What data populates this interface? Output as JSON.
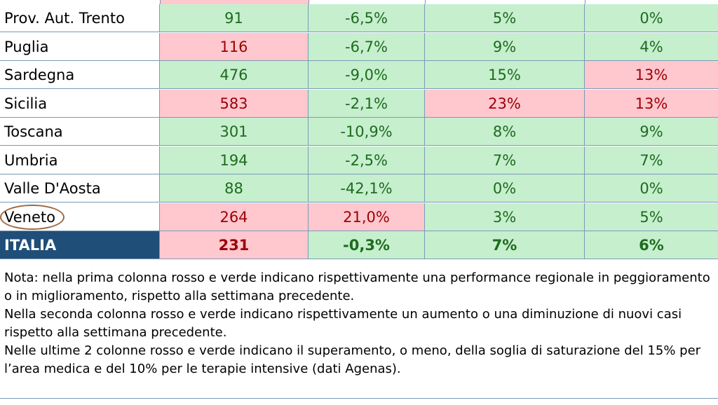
{
  "table": {
    "rows": [
      {
        "name": "Prov. Aut. Trento",
        "c1": "91",
        "c2": "-6,5%",
        "c3": "5%",
        "c4": "0%",
        "s1": "green",
        "s2": "green",
        "s3": "green",
        "s4": "green"
      },
      {
        "name": "Puglia",
        "c1": "116",
        "c2": "-6,7%",
        "c3": "9%",
        "c4": "4%",
        "s1": "red",
        "s2": "green",
        "s3": "green",
        "s4": "green"
      },
      {
        "name": "Sardegna",
        "c1": "476",
        "c2": "-9,0%",
        "c3": "15%",
        "c4": "13%",
        "s1": "green",
        "s2": "green",
        "s3": "green",
        "s4": "red"
      },
      {
        "name": "Sicilia",
        "c1": "583",
        "c2": "-2,1%",
        "c3": "23%",
        "c4": "13%",
        "s1": "red",
        "s2": "green",
        "s3": "red",
        "s4": "red"
      },
      {
        "name": "Toscana",
        "c1": "301",
        "c2": "-10,9%",
        "c3": "8%",
        "c4": "9%",
        "s1": "green",
        "s2": "green",
        "s3": "green",
        "s4": "green"
      },
      {
        "name": "Umbria",
        "c1": "194",
        "c2": "-2,5%",
        "c3": "7%",
        "c4": "7%",
        "s1": "green",
        "s2": "green",
        "s3": "green",
        "s4": "green"
      },
      {
        "name": "Valle D'Aosta",
        "c1": "88",
        "c2": "-42,1%",
        "c3": "0%",
        "c4": "0%",
        "s1": "green",
        "s2": "green",
        "s3": "green",
        "s4": "green"
      },
      {
        "name": "Veneto",
        "c1": "264",
        "c2": "21,0%",
        "c3": "3%",
        "c4": "5%",
        "s1": "red",
        "s2": "red",
        "s3": "green",
        "s4": "green"
      }
    ],
    "total": {
      "name": "ITALIA",
      "c1": "231",
      "c2": "-0,3%",
      "c3": "7%",
      "c4": "6%",
      "s1": "red",
      "s2": "green",
      "s3": "green",
      "s4": "green"
    },
    "top_strip_colors": [
      "#ffffff",
      "#ffc7ce",
      "#ffffff",
      "#ffffff",
      "#ffffff"
    ]
  },
  "notes": [
    "Nota: nella prima colonna rosso e verde indicano rispettivamente una performance regionale in peggioramento",
    "o in miglioramento, rispetto alla settimana precedente.",
    "Nella seconda colonna rosso e verde indicano rispettivamente un aumento o una diminuzione di nuovi casi",
    "rispetto alla settimana precedente.",
    "Nelle ultime 2 colonne rosso e verde indicano il superamento, o meno, della soglia di saturazione del 15% per",
    "l’area medica e del 10% per le terapie intensive (dati Agenas)."
  ],
  "colors": {
    "green_bg": "#c6efce",
    "green_text": "#1e6b1e",
    "red_bg": "#ffc7ce",
    "red_text": "#9c0006",
    "italia_bg": "#1f4e79",
    "highlight_ring": "#a0693e"
  }
}
